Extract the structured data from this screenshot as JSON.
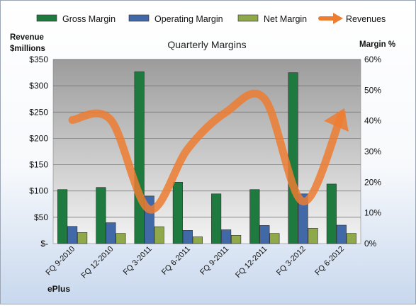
{
  "chart_data": {
    "type": "bar",
    "title": "Quarterly Margins",
    "company": "ePlus",
    "y_left_label_line1": "Revenue",
    "y_left_label_line2": "$millions",
    "y_right_label": "Margin %",
    "categories": [
      "FQ 9-2010",
      "FQ 12-2010",
      "FQ 3-2011",
      "FQ 6-2011",
      "FQ 9-2011",
      "FQ 12-2011",
      "FQ 3-2012",
      "FQ 6-2012"
    ],
    "left_axis": {
      "min": 0,
      "max": 350,
      "step": 50,
      "tick_labels": [
        "$-",
        "$50",
        "$100",
        "$150",
        "$200",
        "$250",
        "$300",
        "$350"
      ]
    },
    "right_axis": {
      "min": 0,
      "max": 60,
      "step": 10,
      "tick_labels": [
        "0%",
        "10%",
        "20%",
        "30%",
        "40%",
        "50%",
        "60%"
      ]
    },
    "series": [
      {
        "name": "Gross Margin",
        "kind": "bar",
        "axis": "right",
        "unit": "%",
        "color": "#1e7a3e",
        "values": [
          17.6,
          18.3,
          56.0,
          20.0,
          16.2,
          17.6,
          55.7,
          19.4
        ]
      },
      {
        "name": "Operating Margin",
        "kind": "bar",
        "axis": "right",
        "unit": "%",
        "color": "#4169a8",
        "values": [
          5.6,
          6.8,
          15.5,
          4.3,
          4.5,
          5.9,
          16.2,
          6.0
        ]
      },
      {
        "name": "Net Margin",
        "kind": "bar",
        "axis": "right",
        "unit": "%",
        "color": "#8ea84a",
        "values": [
          3.6,
          3.3,
          5.5,
          2.2,
          2.7,
          3.3,
          5.0,
          3.3
        ]
      },
      {
        "name": "Revenues",
        "kind": "line",
        "axis": "left",
        "unit": "$M",
        "color": "#ed7d31",
        "values": [
          235,
          235,
          65,
          180,
          250,
          275,
          80,
          245
        ]
      }
    ],
    "legend_position": "top",
    "grid": true
  }
}
